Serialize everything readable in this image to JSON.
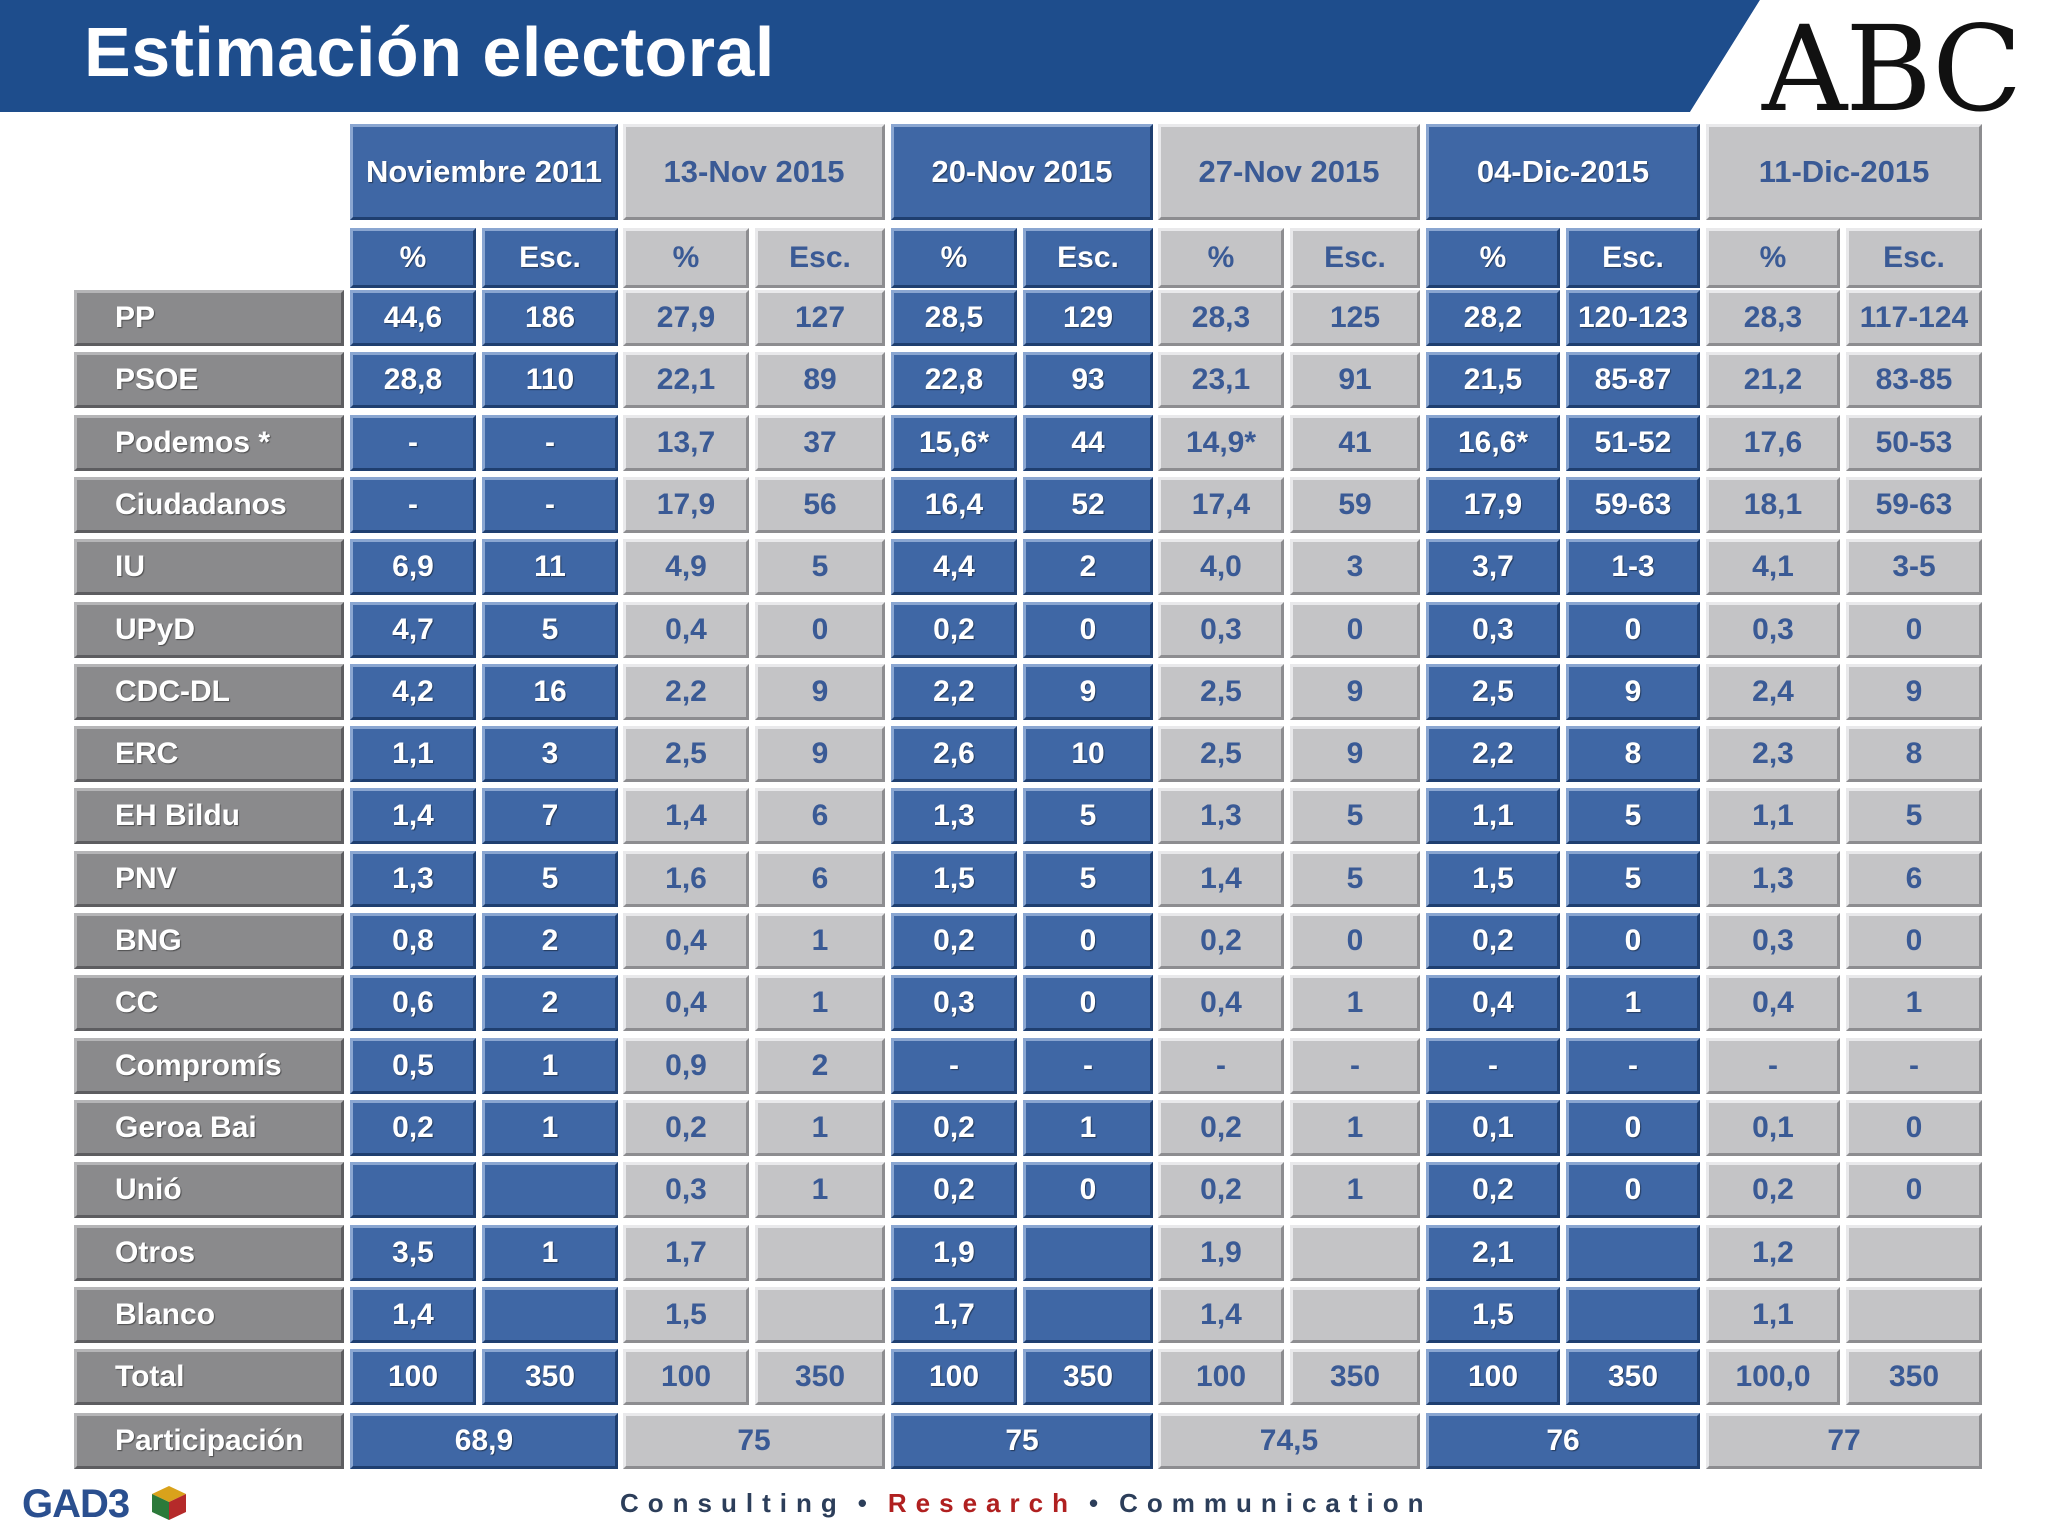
{
  "header": {
    "title": "Estimación electoral",
    "brand": "ABC"
  },
  "footer": {
    "logo": "GAD3",
    "tagline": {
      "consulting": "Consulting",
      "research": "Research",
      "communication": "Communication",
      "separator": "•"
    }
  },
  "colors": {
    "header_blue": "#1e4d8c",
    "cell_blue": "#3f67a5",
    "cell_gray": "#c4c4c6",
    "label_gray": "#8a8a8c"
  },
  "chart_data": {
    "type": "table",
    "title": "Estimación electoral",
    "row_label_header": "",
    "columns": [
      {
        "label": "Noviembre 2011",
        "style": "blue"
      },
      {
        "label": "13-Nov 2015",
        "style": "gray"
      },
      {
        "label": "20-Nov 2015",
        "style": "blue"
      },
      {
        "label": "27-Nov 2015",
        "style": "gray"
      },
      {
        "label": "04-Dic-2015",
        "style": "blue"
      },
      {
        "label": "11-Dic-2015",
        "style": "gray"
      }
    ],
    "subheaders": [
      "%",
      "Esc."
    ],
    "rows": [
      {
        "party": "PP",
        "values": [
          [
            "44,6",
            "186"
          ],
          [
            "27,9",
            "127"
          ],
          [
            "28,5",
            "129"
          ],
          [
            "28,3",
            "125"
          ],
          [
            "28,2",
            "120-123"
          ],
          [
            "28,3",
            "117-124"
          ]
        ]
      },
      {
        "party": "PSOE",
        "values": [
          [
            "28,8",
            "110"
          ],
          [
            "22,1",
            "89"
          ],
          [
            "22,8",
            "93"
          ],
          [
            "23,1",
            "91"
          ],
          [
            "21,5",
            "85-87"
          ],
          [
            "21,2",
            "83-85"
          ]
        ]
      },
      {
        "party": "Podemos *",
        "values": [
          [
            "-",
            "-"
          ],
          [
            "13,7",
            "37"
          ],
          [
            "15,6*",
            "44"
          ],
          [
            "14,9*",
            "41"
          ],
          [
            "16,6*",
            "51-52"
          ],
          [
            "17,6",
            "50-53"
          ]
        ]
      },
      {
        "party": "Ciudadanos",
        "values": [
          [
            "-",
            "-"
          ],
          [
            "17,9",
            "56"
          ],
          [
            "16,4",
            "52"
          ],
          [
            "17,4",
            "59"
          ],
          [
            "17,9",
            "59-63"
          ],
          [
            "18,1",
            "59-63"
          ]
        ]
      },
      {
        "party": "IU",
        "values": [
          [
            "6,9",
            "11"
          ],
          [
            "4,9",
            "5"
          ],
          [
            "4,4",
            "2"
          ],
          [
            "4,0",
            "3"
          ],
          [
            "3,7",
            "1-3"
          ],
          [
            "4,1",
            "3-5"
          ]
        ]
      },
      {
        "party": "UPyD",
        "values": [
          [
            "4,7",
            "5"
          ],
          [
            "0,4",
            "0"
          ],
          [
            "0,2",
            "0"
          ],
          [
            "0,3",
            "0"
          ],
          [
            "0,3",
            "0"
          ],
          [
            "0,3",
            "0"
          ]
        ]
      },
      {
        "party": "CDC-DL",
        "values": [
          [
            "4,2",
            "16"
          ],
          [
            "2,2",
            "9"
          ],
          [
            "2,2",
            "9"
          ],
          [
            "2,5",
            "9"
          ],
          [
            "2,5",
            "9"
          ],
          [
            "2,4",
            "9"
          ]
        ]
      },
      {
        "party": "ERC",
        "values": [
          [
            "1,1",
            "3"
          ],
          [
            "2,5",
            "9"
          ],
          [
            "2,6",
            "10"
          ],
          [
            "2,5",
            "9"
          ],
          [
            "2,2",
            "8"
          ],
          [
            "2,3",
            "8"
          ]
        ]
      },
      {
        "party": "EH Bildu",
        "values": [
          [
            "1,4",
            "7"
          ],
          [
            "1,4",
            "6"
          ],
          [
            "1,3",
            "5"
          ],
          [
            "1,3",
            "5"
          ],
          [
            "1,1",
            "5"
          ],
          [
            "1,1",
            "5"
          ]
        ]
      },
      {
        "party": "PNV",
        "values": [
          [
            "1,3",
            "5"
          ],
          [
            "1,6",
            "6"
          ],
          [
            "1,5",
            "5"
          ],
          [
            "1,4",
            "5"
          ],
          [
            "1,5",
            "5"
          ],
          [
            "1,3",
            "6"
          ]
        ]
      },
      {
        "party": "BNG",
        "values": [
          [
            "0,8",
            "2"
          ],
          [
            "0,4",
            "1"
          ],
          [
            "0,2",
            "0"
          ],
          [
            "0,2",
            "0"
          ],
          [
            "0,2",
            "0"
          ],
          [
            "0,3",
            "0"
          ]
        ]
      },
      {
        "party": "CC",
        "values": [
          [
            "0,6",
            "2"
          ],
          [
            "0,4",
            "1"
          ],
          [
            "0,3",
            "0"
          ],
          [
            "0,4",
            "1"
          ],
          [
            "0,4",
            "1"
          ],
          [
            "0,4",
            "1"
          ]
        ]
      },
      {
        "party": "Compromís",
        "values": [
          [
            "0,5",
            "1"
          ],
          [
            "0,9",
            "2"
          ],
          [
            "-",
            "-"
          ],
          [
            "-",
            "-"
          ],
          [
            "-",
            "-"
          ],
          [
            "-",
            "-"
          ]
        ]
      },
      {
        "party": "Geroa Bai",
        "values": [
          [
            "0,2",
            "1"
          ],
          [
            "0,2",
            "1"
          ],
          [
            "0,2",
            "1"
          ],
          [
            "0,2",
            "1"
          ],
          [
            "0,1",
            "0"
          ],
          [
            "0,1",
            "0"
          ]
        ]
      },
      {
        "party": "Unió",
        "values": [
          [
            "",
            ""
          ],
          [
            "0,3",
            "1"
          ],
          [
            "0,2",
            "0"
          ],
          [
            "0,2",
            "1"
          ],
          [
            "0,2",
            "0"
          ],
          [
            "0,2",
            "0"
          ]
        ]
      },
      {
        "party": "Otros",
        "values": [
          [
            "3,5",
            "1"
          ],
          [
            "1,7",
            ""
          ],
          [
            "1,9",
            ""
          ],
          [
            "1,9",
            ""
          ],
          [
            "2,1",
            ""
          ],
          [
            "1,2",
            ""
          ]
        ]
      },
      {
        "party": "Blanco",
        "values": [
          [
            "1,4",
            ""
          ],
          [
            "1,5",
            ""
          ],
          [
            "1,7",
            ""
          ],
          [
            "1,4",
            ""
          ],
          [
            "1,5",
            ""
          ],
          [
            "1,1",
            ""
          ]
        ]
      },
      {
        "party": "Total",
        "values": [
          [
            "100",
            "350"
          ],
          [
            "100",
            "350"
          ],
          [
            "100",
            "350"
          ],
          [
            "100",
            "350"
          ],
          [
            "100",
            "350"
          ],
          [
            "100,0",
            "350"
          ]
        ]
      }
    ],
    "participation": {
      "label": "Participación",
      "values": [
        "68,9",
        "75",
        "75",
        "74,5",
        "76",
        "77"
      ]
    }
  }
}
